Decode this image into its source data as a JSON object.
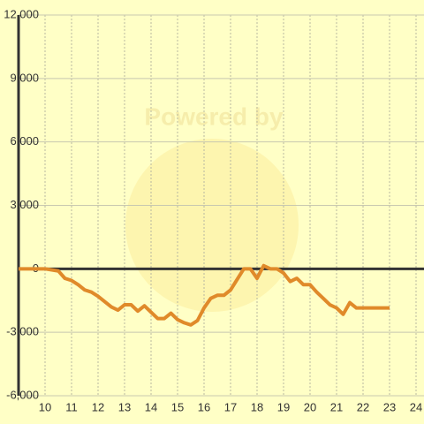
{
  "chart_data": {
    "type": "line",
    "watermark": "Powered by",
    "x": [
      9,
      10,
      10.5,
      10.75,
      11,
      11.25,
      11.5,
      11.75,
      12,
      12.25,
      12.5,
      12.75,
      13,
      13.25,
      13.5,
      13.75,
      14,
      14.25,
      14.5,
      14.75,
      15,
      15.25,
      15.5,
      15.75,
      16,
      16.25,
      16.5,
      16.75,
      17,
      17.25,
      17.5,
      17.75,
      18,
      18.25,
      18.5,
      18.75,
      19,
      19.25,
      19.5,
      19.75,
      20,
      20.25,
      20.5,
      20.75,
      21,
      21.25,
      21.5,
      21.75,
      22,
      22.5,
      23
    ],
    "series": [
      {
        "color": "#e08a2a",
        "values": [
          0,
          0,
          -100,
          -450,
          -550,
          -750,
          -1000,
          -1100,
          -1300,
          -1550,
          -1800,
          -1950,
          -1700,
          -1700,
          -2000,
          -1750,
          -2050,
          -2350,
          -2350,
          -2100,
          -2400,
          -2550,
          -2650,
          -2450,
          -1850,
          -1400,
          -1250,
          -1250,
          -1000,
          -500,
          0,
          0,
          -450,
          150,
          0,
          0,
          -200,
          -600,
          -450,
          -750,
          -750,
          -1100,
          -1400,
          -1700,
          -1850,
          -2150,
          -1600,
          -1850,
          -1850,
          -1850,
          -1850
        ]
      }
    ],
    "xlim": [
      9,
      24.3
    ],
    "xticks": [
      10,
      11,
      12,
      13,
      14,
      15,
      16,
      17,
      18,
      19,
      20,
      21,
      22,
      23,
      24
    ],
    "ylim": [
      -6000,
      12000
    ],
    "yticks": [
      {
        "value": -6000,
        "label": "-6,000"
      },
      {
        "value": -3000,
        "label": "-3,000"
      },
      0,
      {
        "value": 3000,
        "label": "3,000"
      },
      {
        "value": 6000,
        "label": "6,000"
      },
      {
        "value": 9000,
        "label": "9,000"
      },
      {
        "value": 12000,
        "label": "12,000"
      }
    ],
    "grid": true
  }
}
